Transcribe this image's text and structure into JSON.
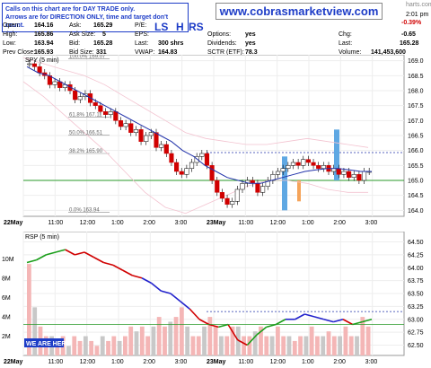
{
  "notice": {
    "line1": "Calls on this chart are for DAY TRADE only.",
    "line2": "Arrows are for DIRECTION ONLY, time and target don't count."
  },
  "site": "www.cobrasmarketview.com",
  "header": {
    "time": "2:01 pm",
    "change_pct": "-0.39%",
    "ticker_fragment": "harts.com",
    "open_label": "Open:",
    "open": "164.16",
    "high_label": "High:",
    "high": "165.86",
    "low_label": "Low:",
    "low": "163.94",
    "prev_close_label": "Prev Close:",
    "prev_close": "165.93",
    "ask_label": "Ask:",
    "ask": "165.29",
    "ask_size_label": "Ask Size:",
    "ask_size": "5",
    "bid_label": "Bid:",
    "bid": "165.28",
    "bid_size_label": "Bid Size:",
    "bid_size": "331",
    "pe_label": "P/E:",
    "pe": "",
    "eps_label": "EPS:",
    "eps": "",
    "last_size_label": "Last:",
    "last_size": "300 shrs",
    "vwap_label": "VWAP:",
    "vwap": "164.83",
    "options_label": "Options:",
    "options": "yes",
    "dividends_label": "Dividends:",
    "dividends": "yes",
    "sctr_label": "SCTR (ETF):",
    "sctr": "78.3",
    "chg_label": "Chg:",
    "chg": "-0.65",
    "last_label": "Last:",
    "last": "165.28",
    "volume_label": "Volume:",
    "volume": "141,453,600",
    "ls": "LS",
    "h": "H",
    "rs": "RS"
  },
  "chart_data": [
    {
      "type": "line",
      "title": "SPY (5 min)",
      "ylim": [
        163.8,
        169.2
      ],
      "yticks": [
        "169.0",
        "168.5",
        "168.0",
        "167.5",
        "167.0",
        "166.5",
        "166.0",
        "165.5",
        "165.0",
        "164.5",
        "164.0"
      ],
      "xticks": [
        "22May",
        "11:00",
        "12:00",
        "1:00",
        "2:00",
        "3:00",
        "23May",
        "11:00",
        "12:00",
        "1:00",
        "2:00",
        "3:00"
      ],
      "fib_labels": [
        "100.0% 169.07",
        "61.8% 167.11",
        "50.0% 166.51",
        "38.2% 165.90",
        "0.0% 163.94"
      ],
      "price_series": [
        168.9,
        168.8,
        168.6,
        168.5,
        168.2,
        168.3,
        168.1,
        168.2,
        168.0,
        167.7,
        167.8,
        167.9,
        167.6,
        167.5,
        167.3,
        167.2,
        167.3,
        167.0,
        166.8,
        166.9,
        166.6,
        166.7,
        166.3,
        166.5,
        166.6,
        166.1,
        166.2,
        165.9,
        165.6,
        165.3,
        165.2,
        165.4,
        165.6,
        165.8,
        165.9,
        165.5,
        165.0,
        164.6,
        164.4,
        164.2,
        164.3,
        164.7,
        164.9,
        165.0,
        164.9,
        164.6,
        164.8,
        165.0,
        165.2,
        165.3,
        165.4,
        165.5,
        165.6,
        165.5,
        165.7,
        165.6,
        165.5,
        165.4,
        165.5,
        165.3,
        165.4,
        165.2,
        165.3,
        165.1,
        165.2,
        165.0,
        165.3,
        165.3
      ],
      "ma_series": [
        168.8,
        168.6,
        168.5,
        168.3,
        168.1,
        167.9,
        167.7,
        167.5,
        167.3,
        167.1,
        166.9,
        166.7,
        166.5,
        166.3,
        166.0,
        165.8,
        165.5,
        165.3,
        165.1,
        165.0,
        164.9,
        164.9,
        165.0,
        165.1,
        165.2,
        165.3,
        165.35,
        165.4,
        165.4,
        165.35,
        165.3,
        165.3
      ],
      "annotations": {
        "horizontal_lines": [
          165.0,
          165.93
        ]
      }
    },
    {
      "type": "bar",
      "title": "RSP (5 min)",
      "ylim": [
        62.3,
        64.7
      ],
      "yticks": [
        "64.50",
        "64.25",
        "64.00",
        "63.75",
        "63.50",
        "63.25",
        "63.00",
        "62.75",
        "62.50"
      ],
      "vol_ticks": [
        "10M",
        "8M",
        "6M",
        "4M",
        "2M"
      ],
      "xticks": [
        "22May",
        "11:00",
        "12:00",
        "1:00",
        "2:00",
        "3:00",
        "23May",
        "11:00",
        "12:00",
        "1:00",
        "2:00",
        "3:00"
      ],
      "price_series": [
        64.1,
        64.15,
        64.25,
        64.3,
        64.35,
        64.25,
        64.3,
        64.2,
        64.1,
        64.05,
        63.95,
        63.85,
        63.8,
        63.7,
        63.55,
        63.5,
        63.35,
        63.2,
        63.0,
        62.9,
        62.85,
        62.9,
        62.6,
        62.5,
        62.7,
        62.85,
        62.9,
        63.0,
        63.0,
        63.1,
        63.05,
        63.0,
        62.95,
        63.0,
        62.9,
        62.95,
        63.0
      ],
      "volume_series": [
        9.5,
        5,
        3,
        2,
        2,
        1.5,
        2,
        1,
        2,
        1.5,
        2,
        1.5,
        1,
        2,
        1.5,
        2,
        1.5,
        2,
        3,
        2.5,
        3,
        2,
        3,
        4,
        3,
        3.5,
        4,
        5,
        3,
        2,
        2,
        3,
        4,
        3,
        2,
        2,
        3,
        3,
        2,
        2,
        2.5,
        3,
        2,
        2,
        3,
        2,
        2,
        1.5,
        2,
        2,
        3,
        2,
        2,
        2.5,
        2,
        2,
        3,
        2,
        2,
        4,
        3
      ],
      "label": "WE ARE HERE!"
    }
  ]
}
